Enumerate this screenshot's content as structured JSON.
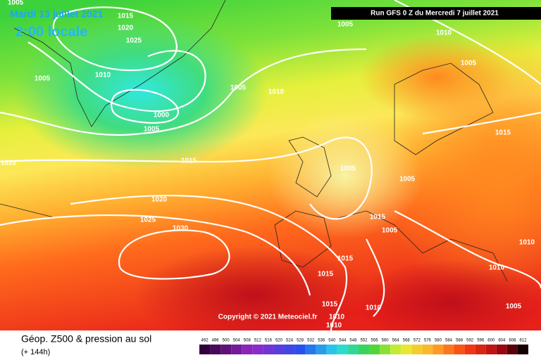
{
  "date_title": "Mardi 13 juillet 2021",
  "time_title": "2:00 locale",
  "run_info": "Run GFS 0 Z du Mercredi 7 juillet 2021",
  "copyright": "Copyright © 2021 Meteociel.fr",
  "map_title": "Géop. Z500 & pression au sol",
  "forecast_hour": "(+ 144h)",
  "isobar_labels": [
    "1015",
    "1020",
    "1025",
    "1005",
    "1010",
    "1005",
    "1010",
    "1005",
    "1010",
    "1005",
    "1000",
    "1005",
    "1015",
    "1020",
    "1015",
    "1005",
    "1005",
    "1020",
    "1025",
    "1030",
    "1015",
    "1005",
    "1010",
    "1015",
    "1015",
    "1010",
    "1015",
    "1010",
    "1010",
    "1010",
    "1005",
    "1005"
  ],
  "scale_labels": [
    "492",
    "496",
    "500",
    "504",
    "508",
    "512",
    "516",
    "520",
    "524",
    "528",
    "532",
    "536",
    "540",
    "544",
    "548",
    "552",
    "556",
    "560",
    "564",
    "568",
    "572",
    "576",
    "580",
    "584",
    "588",
    "592",
    "596",
    "600",
    "604",
    "608",
    "612"
  ]
}
